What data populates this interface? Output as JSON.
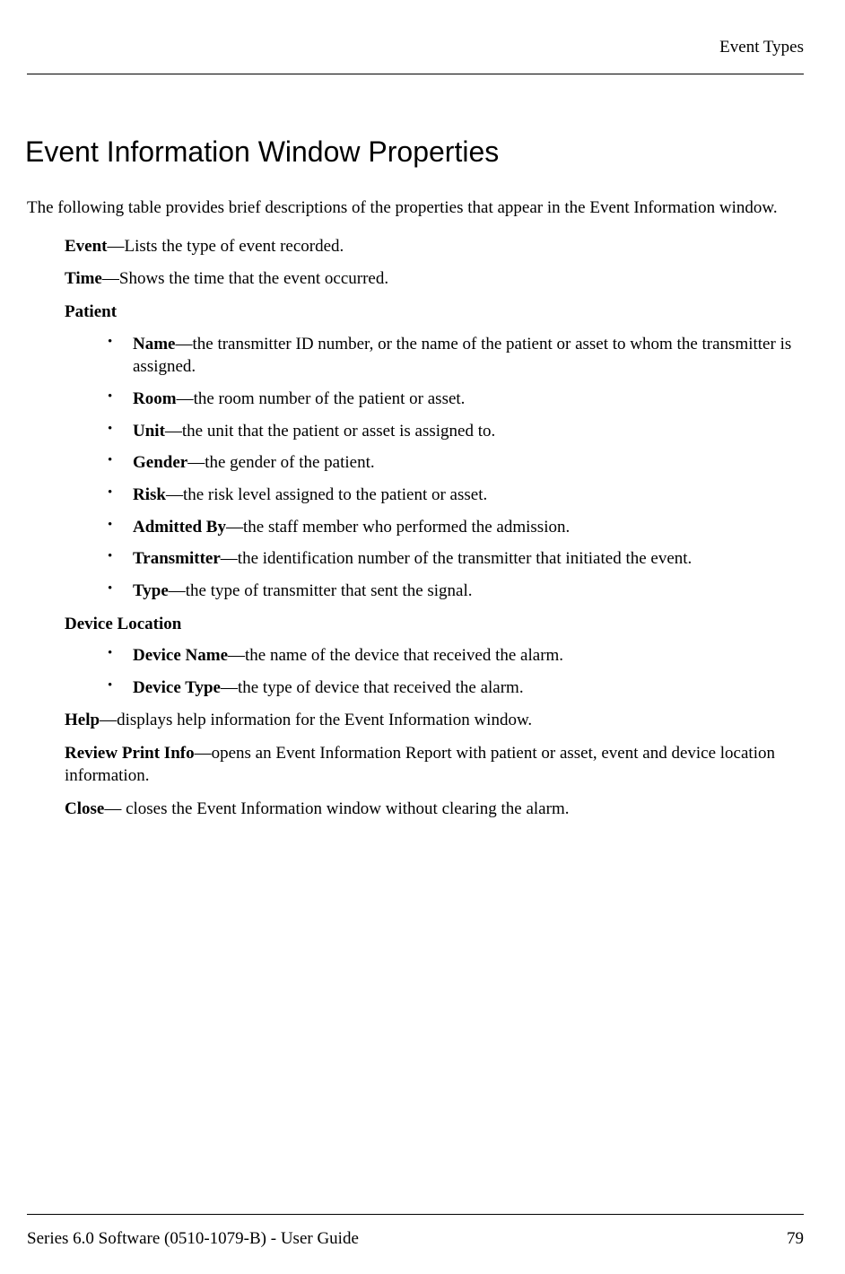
{
  "header": {
    "section_title": "Event Types"
  },
  "main": {
    "heading": "Event Information Window Properties",
    "intro": "The following table provides brief descriptions of the properties that appear in the Event Information window.",
    "properties": [
      {
        "label": "Event",
        "desc": "—Lists the type of event recorded."
      },
      {
        "label": "Time",
        "desc": "—Shows the time that the event occurred."
      },
      {
        "label": "Patient",
        "desc": "",
        "sub": [
          {
            "label": "Name",
            "desc": "—the transmitter ID number, or the name of the patient or asset to whom the transmitter is assigned."
          },
          {
            "label": "Room",
            "desc": "—the room number of the patient or asset."
          },
          {
            "label": "Unit",
            "desc": "—the unit that the patient or asset is assigned to."
          },
          {
            "label": "Gender",
            "desc": "—the gender of the patient."
          },
          {
            "label": "Risk",
            "desc": "—the risk level assigned to the patient or asset."
          },
          {
            "label": "Admitted By",
            "desc": "—the staff member who performed the admission."
          },
          {
            "label": "Transmitter",
            "desc": "—the identification number of the transmitter that initiated the event."
          },
          {
            "label": "Type",
            "desc": "—the type of transmitter that sent the signal."
          }
        ]
      },
      {
        "label": "Device Location",
        "desc": "",
        "sub": [
          {
            "label": "Device Name",
            "desc": "—the name of the device that received the alarm."
          },
          {
            "label": "Device Type",
            "desc": "—the type of device that received the alarm."
          }
        ]
      },
      {
        "label": "Help",
        "desc": "—displays help information for the Event Information window."
      },
      {
        "label": "Review Print Info",
        "desc": "—opens an Event Information Report with patient or asset, event and device location information."
      },
      {
        "label": "Close",
        "desc": "— closes the Event Information window without clearing the alarm."
      }
    ]
  },
  "footer": {
    "doc_title": "Series 6.0 Software (0510-1079-B) - User Guide",
    "page_number": "79"
  }
}
